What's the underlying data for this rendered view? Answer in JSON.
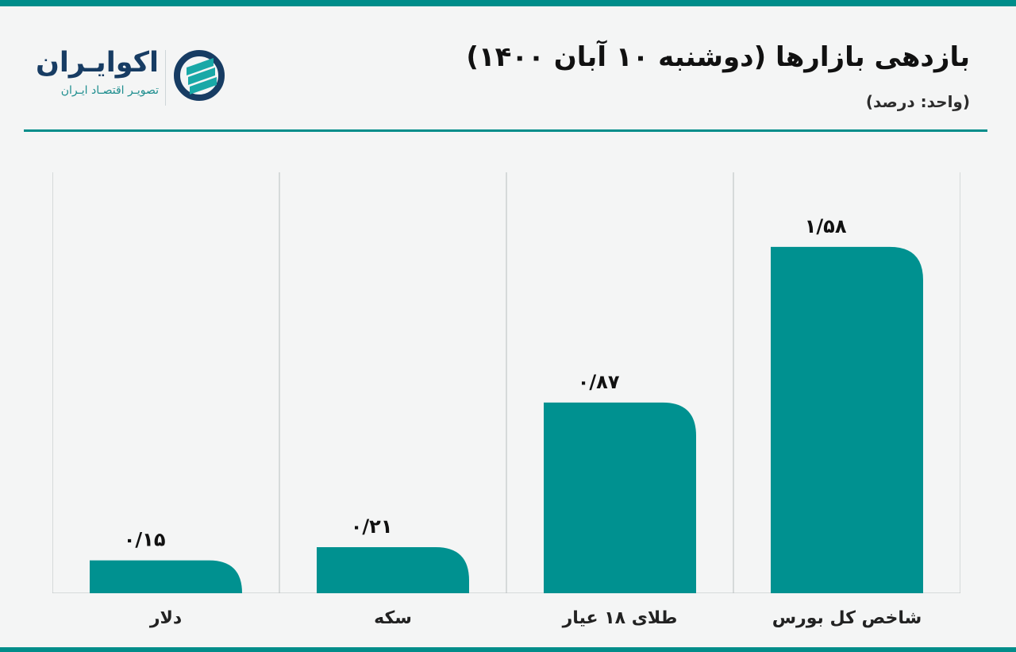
{
  "title": "بازدهی بازارها (دوشنبه ۱۰ آبان ۱۴۰۰)",
  "subtitle": "(واحد: درصد)",
  "logo": {
    "name": "اکوایـران",
    "tagline": "تصویـر اقتصـاد ایـران",
    "icon": "brand-logo-icon"
  },
  "colors": {
    "primary": "#009190",
    "text": "#111111",
    "grid": "#b8bfc0",
    "background": "#f4f5f5",
    "rule": "#008d8a",
    "logo_name": "#173c63",
    "logo_tag": "#1d8d8e"
  },
  "chart_data": {
    "type": "bar",
    "title": "بازدهی بازارها (دوشنبه ۱۰ آبان ۱۴۰۰)",
    "unit": "(واحد: درصد)",
    "categories": [
      "دلار",
      "سکه",
      "طلای ۱۸ عیار",
      "شاخص کل بورس"
    ],
    "values": [
      0.15,
      0.21,
      0.87,
      1.58
    ],
    "value_labels": [
      "۰/۱۵",
      "۰/۲۱",
      "۰/۸۷",
      "۱/۵۸"
    ],
    "ylim": [
      0,
      1.92
    ],
    "grid": "vertical",
    "color": "#009190"
  }
}
